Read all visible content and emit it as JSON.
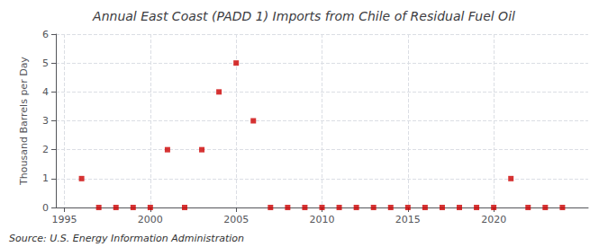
{
  "chart_data": {
    "type": "scatter",
    "title": "Annual East Coast (PADD 1) Imports from Chile of Residual Fuel Oil",
    "ylabel": "Thousand Barrels per Day",
    "annotations": [
      "Source: U.S. Energy Information Administration"
    ],
    "x": [
      1996,
      1997,
      1998,
      1999,
      2000,
      2001,
      2002,
      2003,
      2004,
      2005,
      2006,
      2007,
      2008,
      2009,
      2010,
      2011,
      2012,
      2013,
      2014,
      2015,
      2016,
      2017,
      2018,
      2019,
      2020,
      2021,
      2022,
      2023,
      2024
    ],
    "values": [
      1,
      0,
      0,
      0,
      0,
      2,
      0,
      2,
      4,
      5,
      3,
      0,
      0,
      0,
      0,
      0,
      0,
      0,
      0,
      0,
      0,
      0,
      0,
      0,
      0,
      1,
      0,
      0,
      0
    ],
    "color": "#cc0000",
    "marker": "square",
    "xlim": [
      1994.5,
      2025.5
    ],
    "ylim": [
      0,
      6
    ],
    "xticks": [
      1995,
      2000,
      2005,
      2010,
      2015,
      2020
    ],
    "yticks": [
      0,
      1,
      2,
      3,
      4,
      5,
      6
    ],
    "grid": true
  }
}
